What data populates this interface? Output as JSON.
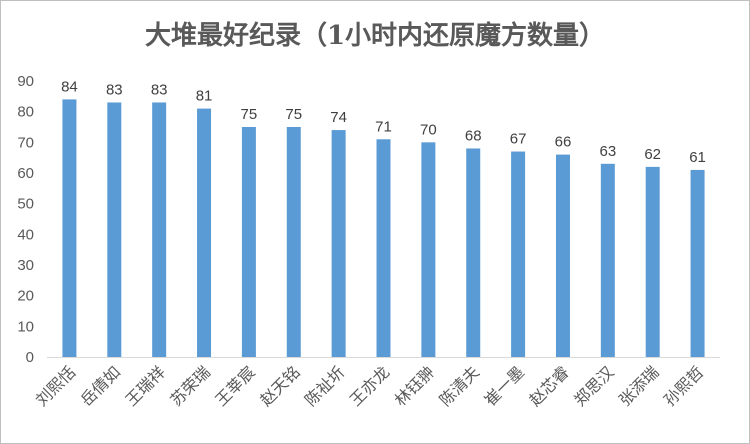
{
  "chart_data": {
    "type": "bar",
    "title": "大堆最好纪录（1小时内还原魔方数量）",
    "xlabel": "",
    "ylabel": "",
    "ylim": [
      0,
      90
    ],
    "yticks": [
      0,
      10,
      20,
      30,
      40,
      50,
      60,
      70,
      80,
      90
    ],
    "grid": false,
    "legend": "none",
    "bar_color": "#5b9bd5",
    "categories": [
      "刘熙恬",
      "岳倩如",
      "王瑞祥",
      "苏荣瑞",
      "王莘宸",
      "赵天铭",
      "陈祉圻",
      "王亦龙",
      "林钰翀",
      "陈清夫",
      "崔一墨",
      "赵芯睿",
      "郑思汉",
      "张添瑞",
      "孙熙哲"
    ],
    "values": [
      84,
      83,
      83,
      81,
      75,
      75,
      74,
      71,
      70,
      68,
      67,
      66,
      63,
      62,
      61
    ],
    "data_labels": true
  }
}
